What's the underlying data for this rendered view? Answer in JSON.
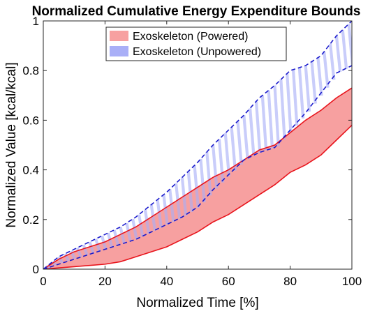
{
  "chart_data": {
    "type": "area",
    "title": "Normalized Cumulative Energy Expenditure Bounds",
    "xlabel": "Normalized Time [%]",
    "ylabel": "Normalized Value [kcal/kcal]",
    "xlim": [
      0,
      100
    ],
    "ylim": [
      0,
      1
    ],
    "xticks": [
      0,
      20,
      40,
      60,
      80,
      100
    ],
    "yticks": [
      0,
      0.2,
      0.4,
      0.6,
      0.8,
      1
    ],
    "ytick_labels": [
      "0",
      "0.2",
      "0.4",
      "0.6",
      "0.8",
      "1"
    ],
    "grid": false,
    "legend_position": "top",
    "series": [
      {
        "name": "Exoskeleton (Powered)",
        "style": "solid-fill",
        "fill_color": "#f7a0a0",
        "line_color": "#e8141c",
        "x": [
          0,
          5,
          10,
          15,
          20,
          25,
          30,
          35,
          40,
          45,
          50,
          55,
          60,
          65,
          70,
          75,
          80,
          85,
          90,
          95,
          100
        ],
        "upper": [
          0.0,
          0.04,
          0.07,
          0.09,
          0.11,
          0.14,
          0.17,
          0.21,
          0.25,
          0.29,
          0.33,
          0.37,
          0.4,
          0.44,
          0.48,
          0.5,
          0.55,
          0.6,
          0.64,
          0.69,
          0.73
        ],
        "lower": [
          0.0,
          0.005,
          0.01,
          0.015,
          0.02,
          0.03,
          0.05,
          0.07,
          0.09,
          0.12,
          0.15,
          0.19,
          0.22,
          0.26,
          0.3,
          0.34,
          0.39,
          0.42,
          0.46,
          0.52,
          0.58
        ]
      },
      {
        "name": "Exoskeleton (Unpowered)",
        "style": "hatched",
        "fill_color": "#a9aff7",
        "line_color": "#1a1acc",
        "x": [
          0,
          5,
          10,
          15,
          20,
          25,
          30,
          35,
          40,
          45,
          50,
          55,
          60,
          65,
          70,
          75,
          80,
          85,
          90,
          95,
          100
        ],
        "upper": [
          0.0,
          0.05,
          0.08,
          0.11,
          0.14,
          0.17,
          0.21,
          0.26,
          0.31,
          0.37,
          0.43,
          0.5,
          0.56,
          0.62,
          0.69,
          0.74,
          0.8,
          0.82,
          0.86,
          0.94,
          1.0
        ],
        "lower": [
          0.0,
          0.02,
          0.04,
          0.06,
          0.08,
          0.1,
          0.12,
          0.15,
          0.18,
          0.21,
          0.25,
          0.32,
          0.38,
          0.44,
          0.47,
          0.49,
          0.56,
          0.63,
          0.71,
          0.79,
          0.82
        ]
      }
    ]
  }
}
